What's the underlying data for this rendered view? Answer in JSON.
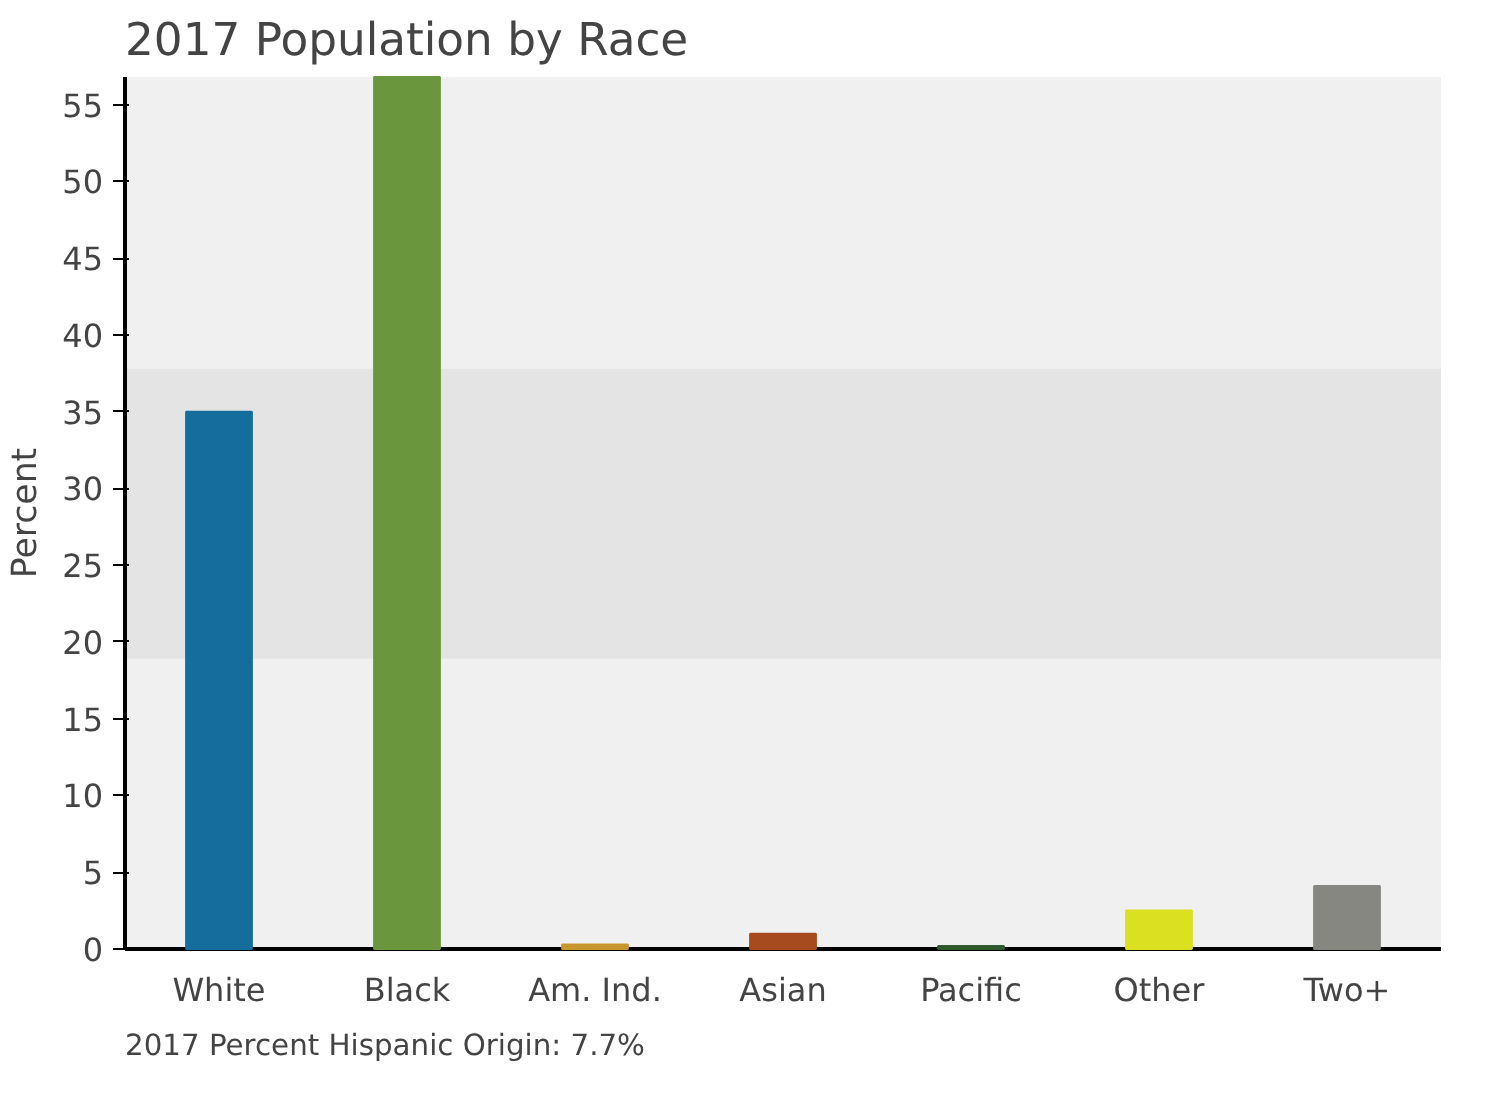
{
  "chart_data": {
    "type": "bar",
    "title": "2017 Population by Race",
    "ylabel": "Percent",
    "categories": [
      "White",
      "Black",
      "Am. Ind.",
      "Asian",
      "Pacific",
      "Other",
      "Two+"
    ],
    "values": [
      35,
      56.8,
      0.3,
      1.0,
      0.2,
      2.5,
      4.1
    ],
    "colors": [
      "#146d9c",
      "#6a963e",
      "#c8962e",
      "#a64a20",
      "#2e5a2e",
      "#dbe020",
      "#878782"
    ],
    "ylim": [
      0,
      56.8
    ],
    "yticks": [
      0,
      5,
      10,
      15,
      20,
      25,
      30,
      35,
      40,
      45,
      50,
      55
    ],
    "bands": [
      {
        "axis": "y",
        "from": 18.9,
        "to": 37.8,
        "label": null,
        "color": "#e4e4e4"
      }
    ],
    "grid": false,
    "annotations": [
      "2017 Percent Hispanic Origin: 7.7%"
    ]
  }
}
